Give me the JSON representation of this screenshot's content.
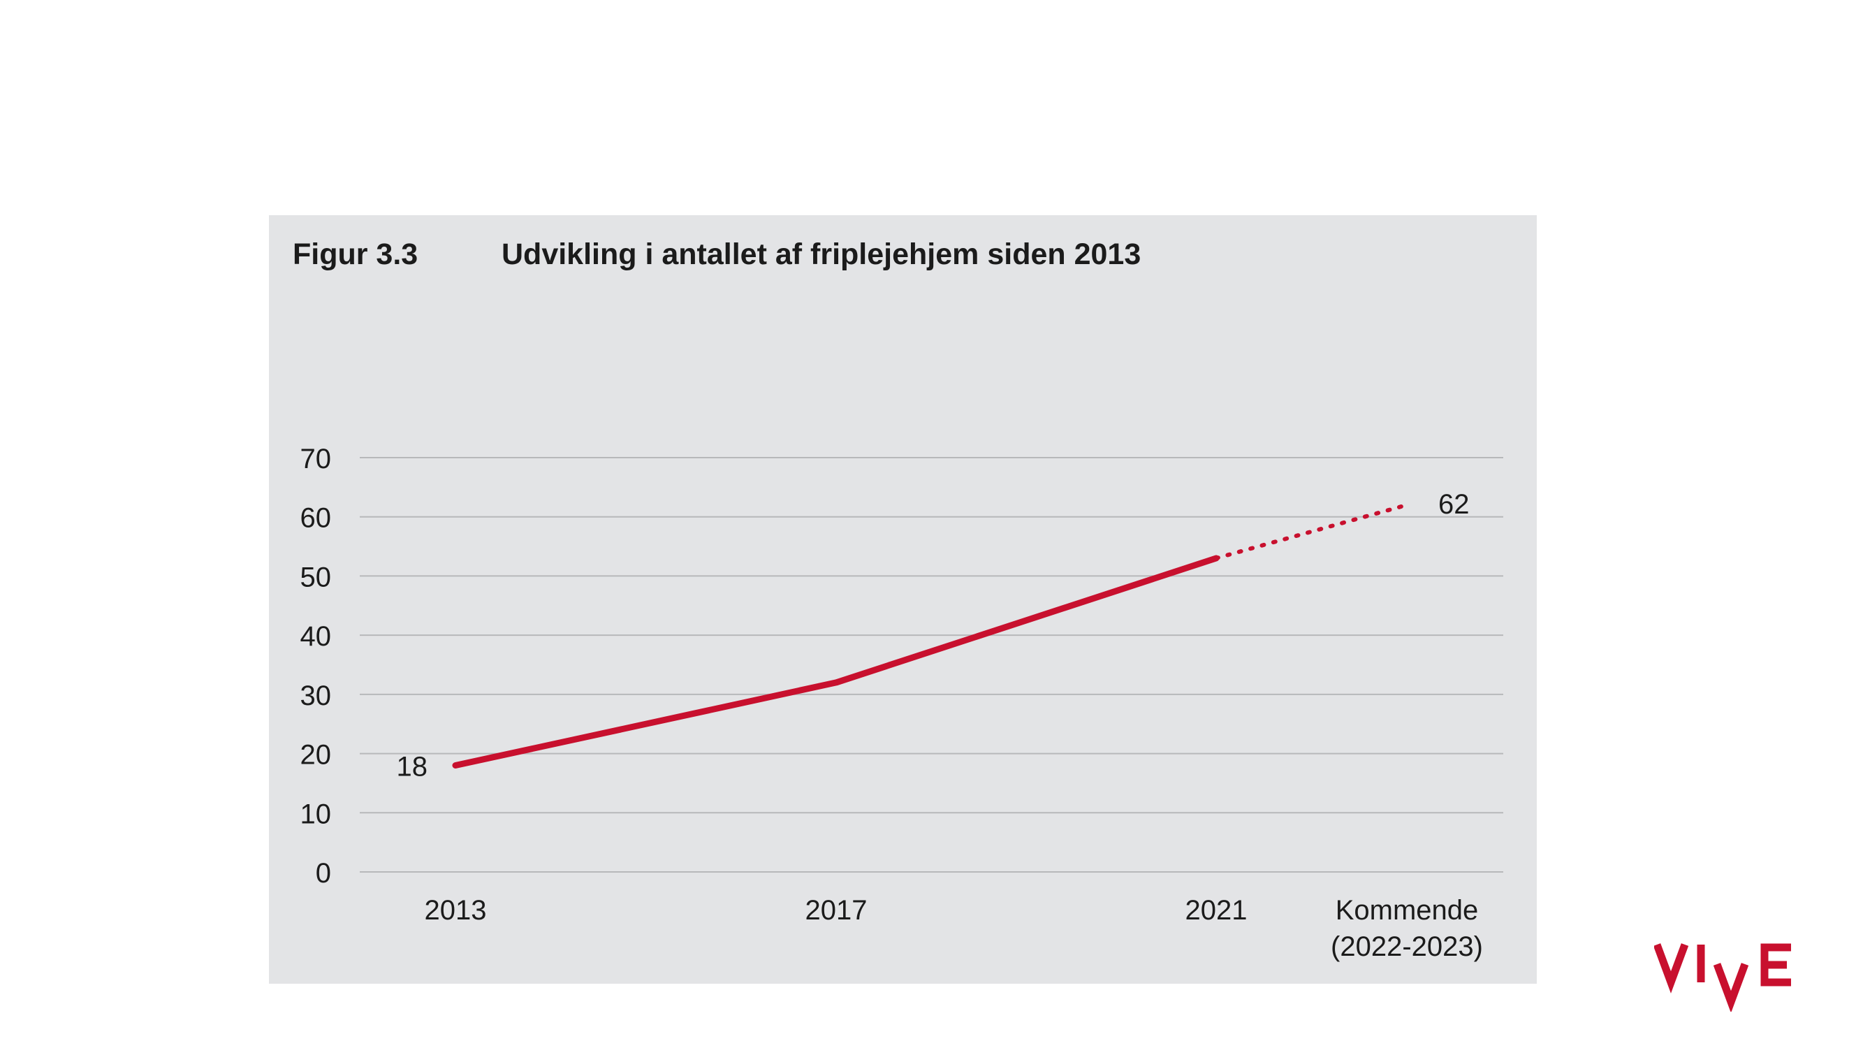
{
  "figure": {
    "label": "Figur 3.3",
    "title": "Udvikling i antallet af friplejehjem siden 2013"
  },
  "chart_data": {
    "type": "line",
    "categories": [
      "2013",
      "2017",
      "2021",
      "Kommende (2022-2023)"
    ],
    "series": [
      {
        "values": [
          18,
          32,
          53,
          null
        ],
        "style": "solid"
      },
      {
        "values": [
          null,
          null,
          53,
          62
        ],
        "style": "dotted"
      }
    ],
    "data_labels": [
      {
        "category": "2013",
        "value": 18,
        "text": "18"
      },
      {
        "category": "Kommende (2022-2023)",
        "value": 62,
        "text": "62"
      }
    ],
    "y_ticks": [
      0,
      10,
      20,
      30,
      40,
      50,
      60,
      70
    ],
    "ylim": [
      0,
      70
    ],
    "grid": true,
    "legend": "none",
    "x_tick_labels": [
      [
        "2013"
      ],
      [
        "2017"
      ],
      [
        "2021"
      ],
      [
        "Kommende",
        "(2022-2023)"
      ]
    ],
    "line_color": "#c8102e",
    "grid_color": "#b7b8ba",
    "panel_color": "#e3e4e6"
  },
  "brand": {
    "logo_text": "VIVE",
    "color": "#c8102e"
  }
}
